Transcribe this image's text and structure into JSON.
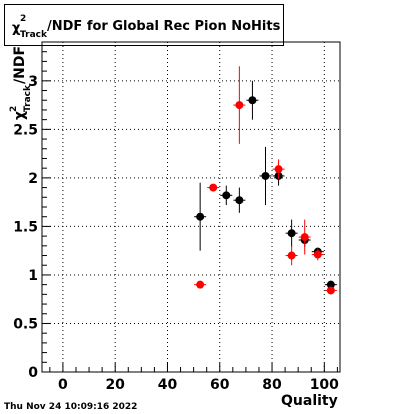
{
  "chart_data": {
    "type": "scatter",
    "title": "/NDF for Global Rec Pion NoHits",
    "title_symbol": "χ",
    "title_sup": "2",
    "title_sub": "Track",
    "xlabel": "Quality",
    "ylabel": "/NDF",
    "ylabel_symbol": "χ",
    "ylabel_sup": "2",
    "ylabel_sub": "Track",
    "xlim": [
      -8,
      106
    ],
    "ylim": [
      0,
      3.4
    ],
    "xticks": [
      0,
      20,
      40,
      60,
      80,
      100
    ],
    "xtick_labels": [
      "0",
      "20",
      "40",
      "60",
      "80",
      "100"
    ],
    "yticks": [
      0,
      0.5,
      1,
      1.5,
      2,
      2.5,
      3
    ],
    "ytick_labels": [
      "0",
      "0.5",
      "1",
      "1.5",
      "2",
      "2.5",
      "3"
    ],
    "grid": true,
    "series": [
      {
        "color": "#000000",
        "x": [
          52.5,
          62.5,
          67.5,
          72.5,
          77.5,
          82.5,
          87.5,
          92.5,
          97.5,
          102.5
        ],
        "y": [
          1.6,
          1.82,
          1.77,
          2.8,
          2.02,
          2.02,
          1.43,
          1.36,
          1.24,
          0.9
        ],
        "yerr": [
          0.35,
          0.1,
          0.13,
          0.2,
          0.3,
          0.1,
          0.14,
          0.07,
          0.04,
          0.03
        ]
      },
      {
        "color": "#ff0000",
        "x": [
          52.5,
          57.5,
          67.5,
          82.5,
          87.5,
          92.5,
          97.5,
          102.5
        ],
        "y": [
          0.9,
          1.9,
          2.75,
          2.09,
          1.2,
          1.39,
          1.21,
          0.84
        ],
        "yerr": [
          0.0,
          0.0,
          0.4,
          0.1,
          0.1,
          0.18,
          0.06,
          0.0
        ]
      }
    ]
  },
  "footer": {
    "timestamp": "Thu Nov 24 10:09:16 2022"
  }
}
